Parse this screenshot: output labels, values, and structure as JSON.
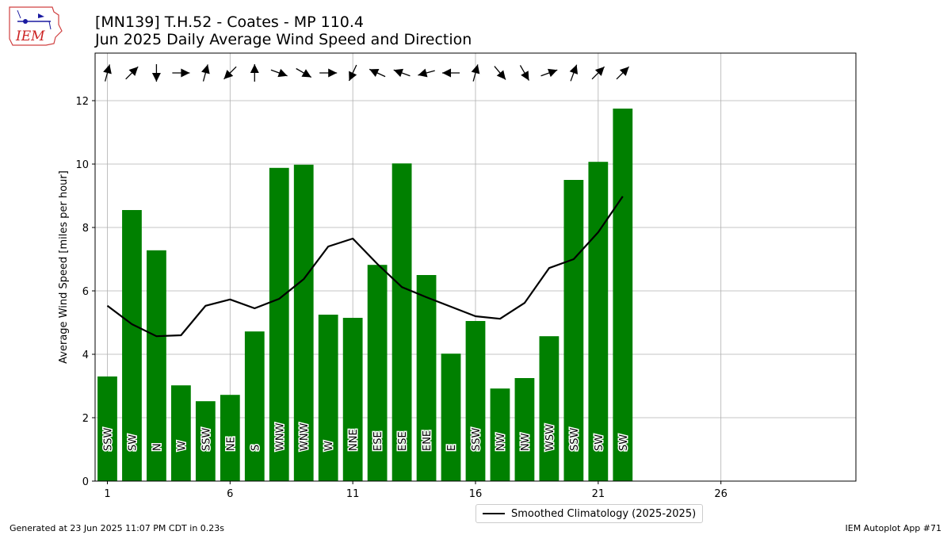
{
  "title": {
    "line1": "[MN139] T.H.52 - Coates - MP 110.4",
    "line2": "Jun 2025 Daily Average Wind Speed and Direction"
  },
  "logo_text": "IEM",
  "footer": {
    "left": "Generated at 23 Jun 2025 11:07 PM CDT in 0.23s",
    "right": "IEM Autoplot App #71"
  },
  "legend": {
    "label": "Smoothed Climatology (2025-2025)",
    "placement": "lower-center"
  },
  "colors": {
    "bar": "#008000",
    "line": "#000000",
    "grid": "#b0b0b0"
  },
  "chart_data": {
    "type": "bar",
    "ylabel": "Average Wind Speed [miles per hour]",
    "xlabel": "",
    "xlim": [
      0.5,
      31.5
    ],
    "ylim": [
      0,
      13.5
    ],
    "xticks": [
      1,
      6,
      11,
      16,
      21,
      26
    ],
    "yticks": [
      0,
      2,
      4,
      6,
      8,
      10,
      12
    ],
    "grid": true,
    "days": [
      1,
      2,
      3,
      4,
      5,
      6,
      7,
      8,
      9,
      10,
      11,
      12,
      13,
      14,
      15,
      16,
      17,
      18,
      19,
      20,
      21,
      22
    ],
    "values": [
      3.3,
      8.55,
      7.28,
      3.02,
      2.52,
      2.72,
      4.72,
      9.88,
      9.98,
      5.25,
      5.15,
      6.82,
      10.02,
      6.5,
      4.02,
      5.05,
      2.92,
      3.25,
      4.57,
      9.5,
      10.07,
      11.75
    ],
    "directions": [
      "SSW",
      "SW",
      "N",
      "W",
      "SSW",
      "NE",
      "S",
      "WNW",
      "WNW",
      "W",
      "NNE",
      "ESE",
      "ESE",
      "ENE",
      "E",
      "SSW",
      "NW",
      "NW",
      "WSW",
      "SSW",
      "SW",
      "SW"
    ],
    "arrow_direction_deg": [
      195,
      225,
      0,
      270,
      195,
      45,
      180,
      290,
      300,
      270,
      25,
      115,
      110,
      75,
      90,
      195,
      320,
      330,
      250,
      200,
      225,
      225
    ],
    "series": [
      {
        "name": "Smoothed Climatology (2025-2025)",
        "x": [
          1,
          2,
          3,
          4,
          5,
          6,
          7,
          8,
          9,
          10,
          11,
          12,
          13,
          14,
          15,
          16,
          17,
          18,
          19,
          20,
          21,
          22
        ],
        "values": [
          5.53,
          4.95,
          4.57,
          4.6,
          5.53,
          5.73,
          5.45,
          5.75,
          6.37,
          7.4,
          7.65,
          6.85,
          6.12,
          5.8,
          5.5,
          5.2,
          5.12,
          5.62,
          6.72,
          7.0,
          7.85,
          8.98
        ]
      }
    ]
  }
}
